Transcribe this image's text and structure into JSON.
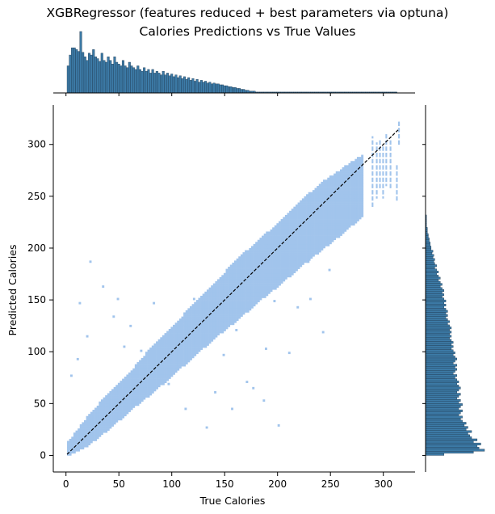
{
  "chart_data": {
    "type": "heatmap",
    "title": "XGBRegressor (features reduced + best parameters via optuna)",
    "subtitle": "Calories Predictions vs True Values",
    "xlabel": "True Calories",
    "ylabel": "Predicted Calories",
    "xlim": [
      -12,
      330
    ],
    "ylim": [
      -16,
      338
    ],
    "xticks": [
      0,
      50,
      100,
      150,
      200,
      250,
      300
    ],
    "yticks": [
      0,
      50,
      100,
      150,
      200,
      250,
      300
    ],
    "reference_line": {
      "x": [
        1,
        314
      ],
      "y": [
        1,
        314
      ],
      "style": "dashed",
      "color": "#000000"
    },
    "density_band": {
      "x": [
        1,
        20,
        40,
        60,
        80,
        100,
        120,
        140,
        160,
        180,
        200,
        220,
        240,
        260,
        280
      ],
      "lower": [
        1,
        10,
        26,
        44,
        60,
        78,
        96,
        114,
        130,
        148,
        164,
        182,
        198,
        214,
        232
      ],
      "upper": [
        12,
        38,
        60,
        80,
        104,
        124,
        146,
        166,
        188,
        206,
        224,
        244,
        262,
        276,
        290
      ]
    },
    "outliers": [
      {
        "x": 22,
        "y": 186
      },
      {
        "x": 12,
        "y": 146
      },
      {
        "x": 34,
        "y": 162
      },
      {
        "x": 4,
        "y": 76
      },
      {
        "x": 10,
        "y": 92
      },
      {
        "x": 19,
        "y": 114
      },
      {
        "x": 44,
        "y": 133
      },
      {
        "x": 48,
        "y": 150
      },
      {
        "x": 188,
        "y": 102
      },
      {
        "x": 210,
        "y": 98
      },
      {
        "x": 242,
        "y": 118
      },
      {
        "x": 176,
        "y": 64
      },
      {
        "x": 156,
        "y": 44
      },
      {
        "x": 132,
        "y": 26
      },
      {
        "x": 200,
        "y": 28
      },
      {
        "x": 186,
        "y": 52
      },
      {
        "x": 218,
        "y": 142
      },
      {
        "x": 170,
        "y": 70
      },
      {
        "x": 112,
        "y": 44
      },
      {
        "x": 96,
        "y": 68
      },
      {
        "x": 140,
        "y": 60
      },
      {
        "x": 60,
        "y": 124
      },
      {
        "x": 82,
        "y": 146
      },
      {
        "x": 70,
        "y": 100
      },
      {
        "x": 248,
        "y": 178
      },
      {
        "x": 230,
        "y": 150
      },
      {
        "x": 160,
        "y": 120
      },
      {
        "x": 196,
        "y": 148
      },
      {
        "x": 228,
        "y": 186
      },
      {
        "x": 120,
        "y": 150
      },
      {
        "x": 54,
        "y": 104
      },
      {
        "x": 148,
        "y": 96
      }
    ],
    "high_columns": [
      {
        "x": 289,
        "ymin": 238,
        "ymax": 306
      },
      {
        "x": 293,
        "ymin": 248,
        "ymax": 300
      },
      {
        "x": 296,
        "ymin": 256,
        "ymax": 304
      },
      {
        "x": 299,
        "ymin": 248,
        "ymax": 296
      },
      {
        "x": 302,
        "ymin": 260,
        "ymax": 308
      },
      {
        "x": 306,
        "ymin": 258,
        "ymax": 304
      },
      {
        "x": 312,
        "ymin": 246,
        "ymax": 278
      },
      {
        "x": 314,
        "ymin": 300,
        "ymax": 322
      }
    ],
    "marginal_x": {
      "bin_width": 2,
      "start": 1,
      "counts": [
        30,
        42,
        50,
        50,
        48,
        46,
        68,
        45,
        40,
        36,
        44,
        42,
        48,
        40,
        38,
        35,
        44,
        36,
        34,
        40,
        36,
        32,
        40,
        34,
        32,
        30,
        36,
        30,
        28,
        34,
        30,
        28,
        26,
        30,
        26,
        24,
        28,
        24,
        26,
        22,
        26,
        22,
        24,
        22,
        20,
        24,
        20,
        22,
        19,
        21,
        18,
        20,
        17,
        19,
        16,
        18,
        15,
        17,
        14,
        16,
        13,
        15,
        12,
        14,
        12,
        13,
        11,
        12,
        10,
        11,
        10,
        10,
        9,
        9,
        8,
        8,
        7,
        7,
        6,
        6,
        5,
        5,
        4,
        4,
        3,
        3,
        2,
        2,
        2,
        1,
        1,
        1,
        1,
        1,
        1,
        1,
        1,
        1,
        1,
        1,
        1,
        1,
        1,
        1,
        1,
        1,
        1,
        1,
        1,
        1,
        1,
        1,
        1,
        1,
        1,
        1,
        1,
        1,
        1,
        1,
        1,
        1,
        1,
        1,
        1,
        1,
        1,
        1,
        1,
        1,
        1,
        1,
        1,
        1,
        1,
        1,
        1,
        1,
        1,
        1,
        1,
        1,
        1,
        1,
        1,
        1,
        1,
        1,
        1,
        1,
        1,
        1,
        1,
        1,
        1,
        1
      ]
    },
    "marginal_y": {
      "bin_width": 2,
      "start": 0,
      "counts": [
        20,
        52,
        64,
        58,
        56,
        60,
        52,
        56,
        50,
        48,
        46,
        50,
        44,
        46,
        42,
        44,
        40,
        38,
        40,
        36,
        38,
        40,
        36,
        38,
        40,
        36,
        38,
        34,
        36,
        38,
        34,
        36,
        38,
        36,
        34,
        36,
        34,
        32,
        34,
        30,
        32,
        34,
        32,
        34,
        30,
        32,
        34,
        32,
        30,
        32,
        30,
        28,
        30,
        28,
        30,
        28,
        26,
        28,
        26,
        28,
        26,
        28,
        26,
        24,
        26,
        24,
        22,
        24,
        22,
        24,
        22,
        20,
        22,
        20,
        22,
        20,
        18,
        20,
        18,
        20,
        18,
        16,
        18,
        16,
        14,
        16,
        14,
        12,
        14,
        12,
        10,
        12,
        10,
        9,
        10,
        8,
        9,
        7,
        8,
        6,
        6,
        5,
        5,
        4,
        4,
        3,
        3,
        2,
        2,
        2,
        1,
        1,
        1,
        1,
        1,
        1
      ]
    },
    "grid": false,
    "legend": "none"
  },
  "colors": {
    "hist_cell": "#a1c4ec",
    "marginal_fill": "#3c7aa6",
    "marginal_edge": "#1f3a52",
    "axis": "#000000"
  }
}
